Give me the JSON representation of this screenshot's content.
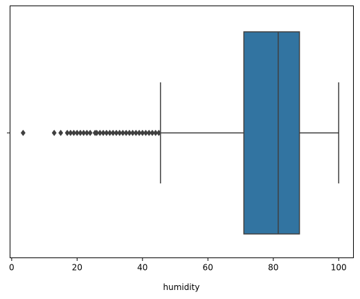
{
  "chart_data": {
    "type": "boxplot",
    "orientation": "horizontal",
    "title": "",
    "xlabel": "humidity",
    "ylabel": "",
    "xlim": [
      -0.5,
      104.5
    ],
    "x_ticks": [
      0,
      20,
      40,
      60,
      80,
      100
    ],
    "y_ticks": [
      ""
    ],
    "grid": false,
    "colors": {
      "box_fill": "#3274a1",
      "line": "#3f3f3f"
    },
    "box": {
      "whisker_low": 45.5,
      "q1": 71,
      "median": 81.5,
      "q3": 88,
      "whisker_high": 100
    },
    "outliers": [
      3.5,
      13,
      15,
      17,
      18,
      19,
      20,
      21,
      22,
      23,
      24,
      25.5,
      26,
      27,
      28,
      29,
      30,
      31,
      32,
      33,
      34,
      35,
      36,
      37,
      38,
      39,
      40,
      41,
      42,
      43,
      44,
      45
    ]
  }
}
